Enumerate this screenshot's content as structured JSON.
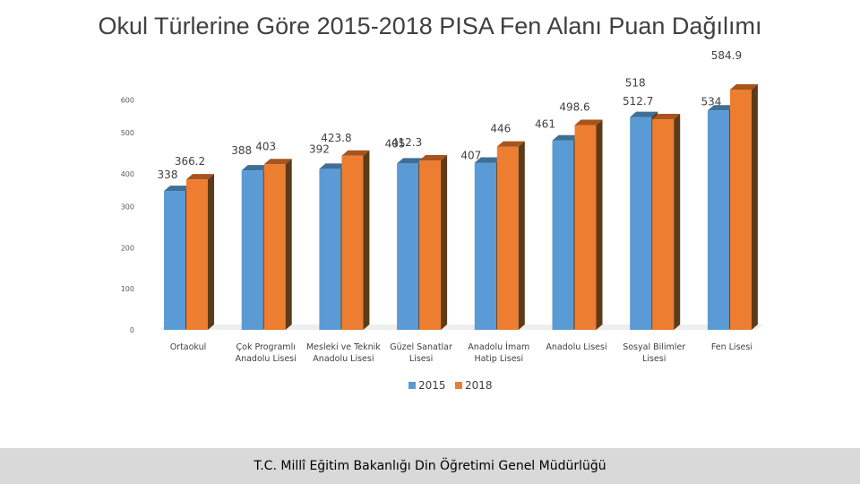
{
  "title": "Okul Türlerine Göre 2015-2018 PISA Fen Alanı Puan Dağılımı",
  "footer": "T.C. Millî Eğitim Bakanlığı Din Öğretimi Genel Müdürlüğü",
  "chart_data": {
    "type": "bar",
    "categories": [
      [
        "Ortaokul"
      ],
      [
        "Çok Programlı",
        "Anadolu Lisesi"
      ],
      [
        "Mesleki ve Teknik",
        "Anadolu Lisesi"
      ],
      [
        "Güzel Sanatlar",
        "Lisesi"
      ],
      [
        "Anadolu İmam",
        "Hatip Lisesi"
      ],
      [
        "Anadolu Lisesi"
      ],
      [
        "Sosyal Bilimler",
        "Lisesi"
      ],
      [
        "Fen Lisesi"
      ]
    ],
    "series": [
      {
        "name": "2015",
        "values": [
          338,
          388,
          392,
          405,
          407,
          461,
          518,
          534
        ],
        "labels": [
          "338",
          "388",
          "392",
          "405",
          "407",
          "461",
          "518",
          "534"
        ]
      },
      {
        "name": "2018",
        "values": [
          366.2,
          403,
          423.8,
          412.3,
          446,
          498.6,
          512.7,
          584.9
        ],
        "labels": [
          "366.2",
          "403",
          "423.8",
          "412.3",
          "446",
          "498.6",
          "512.7",
          "584.9"
        ]
      }
    ],
    "y_ticks": [
      "0",
      "100",
      "200",
      "300",
      "400",
      "500",
      "600"
    ],
    "ylim": [
      0,
      600
    ],
    "legend_position": "bottom",
    "colors": {
      "2015": "#5b9bd5",
      "2018": "#ed7d31",
      "side": "#5c3b1a",
      "top2015": "#3f6f96",
      "top2018": "#a7541d"
    }
  }
}
